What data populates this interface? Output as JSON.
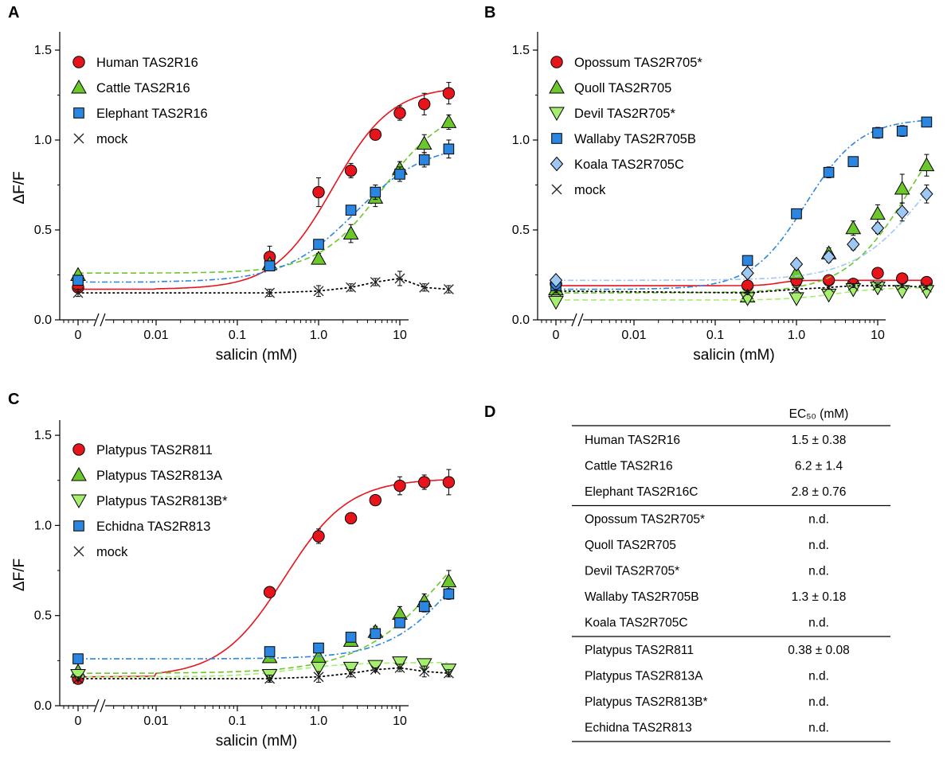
{
  "colors": {
    "red": "#e8141c",
    "green": "#6cc82a",
    "lightgreen": "#a6ee6e",
    "blue": "#2a86e0",
    "lightblue": "#9ec8f3",
    "mock": "#222222"
  },
  "chart_data": [
    {
      "panel": "A",
      "type": "scatter",
      "xlabel": "salicin (mM)",
      "ylabel": "ΔF/F",
      "xscale": "log (with zero point on broken axis)",
      "x_ticks": [
        "0",
        "0.01",
        "0.1",
        "1.0",
        "10"
      ],
      "y_ticks": [
        "0.0",
        "0.5",
        "1.0",
        "1.5"
      ],
      "ylim": [
        0,
        1.55
      ],
      "legend_position": "top-left",
      "x": [
        0,
        0.25,
        1,
        2.5,
        5,
        10,
        20,
        40
      ],
      "series": [
        {
          "name": "Human TAS2R16",
          "marker": "circle",
          "color": "red",
          "line": "solid",
          "values": [
            0.18,
            0.35,
            0.71,
            0.83,
            1.03,
            1.15,
            1.2,
            1.26
          ],
          "errors": [
            0.02,
            0.06,
            0.08,
            0.04,
            0.03,
            0.04,
            0.06,
            0.06
          ],
          "fit": {
            "bottom": 0.17,
            "top": 1.3,
            "ec50": 1.5,
            "hill": 1.2
          }
        },
        {
          "name": "Cattle TAS2R16",
          "marker": "triangle-up",
          "color": "green",
          "line": "dashed",
          "values": [
            0.25,
            0.31,
            0.34,
            0.48,
            0.68,
            0.84,
            0.98,
            1.1
          ],
          "errors": [
            0.01,
            0.02,
            0.03,
            0.05,
            0.05,
            0.04,
            0.05,
            0.04
          ],
          "fit": {
            "bottom": 0.26,
            "top": 1.2,
            "ec50": 6.2,
            "hill": 1.1
          }
        },
        {
          "name": "Elephant TAS2R16",
          "marker": "square",
          "color": "blue",
          "line": "dashdot",
          "values": [
            0.22,
            0.3,
            0.42,
            0.61,
            0.71,
            0.81,
            0.89,
            0.95
          ],
          "errors": [
            0.01,
            0.02,
            0.02,
            0.02,
            0.04,
            0.04,
            0.04,
            0.05
          ],
          "fit": {
            "bottom": 0.21,
            "top": 0.98,
            "ec50": 2.8,
            "hill": 1.0
          }
        },
        {
          "name": "mock",
          "marker": "x",
          "color": "mock",
          "line": "dotted",
          "values": [
            0.15,
            0.15,
            0.16,
            0.18,
            0.21,
            0.23,
            0.18,
            0.17
          ],
          "errors": [
            0.02,
            0.02,
            0.03,
            0.02,
            0.02,
            0.04,
            0.02,
            0.02
          ]
        }
      ]
    },
    {
      "panel": "B",
      "type": "scatter",
      "xlabel": "salicin (mM)",
      "ylabel": "ΔF/F",
      "xscale": "log (with zero point on broken axis)",
      "x_ticks": [
        "0",
        "0.01",
        "0.1",
        "1.0",
        "10"
      ],
      "y_ticks": [
        "0.0",
        "0.5",
        "1.0",
        "1.5"
      ],
      "ylim": [
        0,
        1.55
      ],
      "legend_position": "top-left",
      "x": [
        0,
        0.25,
        1,
        2.5,
        5,
        10,
        20,
        40
      ],
      "series": [
        {
          "name": "Opossum TAS2R705*",
          "marker": "circle",
          "color": "red",
          "line": "solid",
          "values": [
            0.2,
            0.19,
            0.22,
            0.22,
            0.2,
            0.26,
            0.23,
            0.21
          ],
          "errors": [
            0.01,
            0.01,
            0.01,
            0.01,
            0.01,
            0.01,
            0.01,
            0.01
          ],
          "fit": {
            "bottom": 0.19,
            "top": 0.22,
            "ec50": 0.6,
            "hill": 4.0
          }
        },
        {
          "name": "Quoll TAS2R705",
          "marker": "triangle-up",
          "color": "green",
          "line": "dashed",
          "values": [
            0.17,
            0.13,
            0.26,
            0.37,
            0.51,
            0.59,
            0.73,
            0.86
          ],
          "errors": [
            0.01,
            0.01,
            0.02,
            0.03,
            0.04,
            0.05,
            0.08,
            0.06
          ],
          "fit": {
            "bottom": 0.15,
            "top": 1.3,
            "ec50": 25,
            "hill": 1.1
          }
        },
        {
          "name": "Devil TAS2R705*",
          "marker": "triangle-down",
          "color": "lightgreen",
          "line": "dashed",
          "values": [
            0.1,
            0.12,
            0.12,
            0.14,
            0.17,
            0.18,
            0.16,
            0.16
          ],
          "errors": [
            0.01,
            0.01,
            0.01,
            0.01,
            0.02,
            0.01,
            0.02,
            0.01
          ],
          "fit": {
            "bottom": 0.11,
            "top": 0.18,
            "ec50": 3,
            "hill": 1.5
          }
        },
        {
          "name": "Wallaby TAS2R705B",
          "marker": "square",
          "color": "blue",
          "line": "dashdot",
          "values": [
            0.19,
            0.33,
            0.59,
            0.82,
            0.88,
            1.04,
            1.05,
            1.1
          ],
          "errors": [
            0.01,
            0.01,
            0.01,
            0.03,
            0.01,
            0.03,
            0.03,
            0.01
          ],
          "fit": {
            "bottom": 0.17,
            "top": 1.12,
            "ec50": 1.3,
            "hill": 1.3
          }
        },
        {
          "name": "Koala TAS2R705C",
          "marker": "diamond",
          "color": "lightblue",
          "line": "dashdot",
          "values": [
            0.22,
            0.26,
            0.31,
            0.35,
            0.42,
            0.51,
            0.6,
            0.7
          ],
          "errors": [
            0.01,
            0.01,
            0.02,
            0.03,
            0.03,
            0.03,
            0.05,
            0.05
          ],
          "fit": {
            "bottom": 0.22,
            "top": 1.2,
            "ec50": 40,
            "hill": 1.0
          }
        },
        {
          "name": "mock",
          "marker": "x",
          "color": "mock",
          "line": "dotted",
          "values": [
            0.16,
            0.15,
            0.17,
            0.18,
            0.19,
            0.19,
            0.19,
            0.18
          ],
          "errors": [
            0.01,
            0.01,
            0.01,
            0.01,
            0.01,
            0.01,
            0.01,
            0.01
          ]
        }
      ]
    },
    {
      "panel": "C",
      "type": "scatter",
      "xlabel": "salicin (mM)",
      "ylabel": "ΔF/F",
      "xscale": "log (with zero point on broken axis)",
      "x_ticks": [
        "0",
        "0.01",
        "0.1",
        "1.0",
        "10"
      ],
      "y_ticks": [
        "0.0",
        "0.5",
        "1.0",
        "1.5"
      ],
      "ylim": [
        0,
        1.55
      ],
      "legend_position": "top-left",
      "x": [
        0,
        0.25,
        1,
        2.5,
        5,
        10,
        20,
        40
      ],
      "series": [
        {
          "name": "Platypus TAS2R811",
          "marker": "circle",
          "color": "red",
          "line": "solid",
          "values": [
            0.15,
            0.63,
            0.94,
            1.04,
            1.14,
            1.22,
            1.24,
            1.24
          ],
          "errors": [
            0.02,
            0.03,
            0.04,
            0.03,
            0.01,
            0.05,
            0.04,
            0.07
          ],
          "fit": {
            "bottom": 0.16,
            "top": 1.26,
            "ec50": 0.38,
            "hill": 1.1
          }
        },
        {
          "name": "Platypus TAS2R813A",
          "marker": "triangle-up",
          "color": "green",
          "line": "dashed",
          "values": [
            0.19,
            0.27,
            0.27,
            0.36,
            0.41,
            0.51,
            0.58,
            0.69
          ],
          "errors": [
            0.02,
            0.03,
            0.04,
            0.03,
            0.03,
            0.04,
            0.04,
            0.06
          ],
          "fit": {
            "bottom": 0.18,
            "top": 1.3,
            "ec50": 40,
            "hill": 0.8
          }
        },
        {
          "name": "Platypus TAS2R813B*",
          "marker": "triangle-down",
          "color": "lightgreen",
          "line": "dashed",
          "values": [
            0.17,
            0.17,
            0.21,
            0.21,
            0.22,
            0.24,
            0.23,
            0.2
          ],
          "errors": [
            0.02,
            0.02,
            0.02,
            0.02,
            0.02,
            0.03,
            0.03,
            0.02
          ],
          "fit": {
            "bottom": 0.16,
            "top": 0.24,
            "ec50": 0.5,
            "hill": 1.2
          }
        },
        {
          "name": "Echidna TAS2R813",
          "marker": "square",
          "color": "blue",
          "line": "dashdot",
          "values": [
            0.26,
            0.3,
            0.32,
            0.38,
            0.4,
            0.46,
            0.55,
            0.62
          ],
          "errors": [
            0.01,
            0.02,
            0.02,
            0.02,
            0.02,
            0.02,
            0.03,
            0.03
          ],
          "fit": {
            "bottom": 0.26,
            "top": 1.2,
            "ec50": 60,
            "hill": 1.0
          }
        },
        {
          "name": "mock",
          "marker": "x",
          "color": "mock",
          "line": "dotted",
          "values": [
            0.15,
            0.15,
            0.16,
            0.18,
            0.2,
            0.21,
            0.19,
            0.18
          ],
          "errors": [
            0.01,
            0.02,
            0.03,
            0.02,
            0.01,
            0.02,
            0.03,
            0.02
          ]
        }
      ]
    },
    {
      "panel": "D",
      "type": "table",
      "header": "EC₅₀ (mM)",
      "groups": [
        [
          {
            "receptor": "Human TAS2R16",
            "ec50": "1.5 ± 0.38"
          },
          {
            "receptor": "Cattle TAS2R16",
            "ec50": "6.2 ± 1.4"
          },
          {
            "receptor": "Elephant TAS2R16C",
            "ec50": "2.8 ± 0.76"
          }
        ],
        [
          {
            "receptor": "Opossum TAS2R705*",
            "ec50": "n.d."
          },
          {
            "receptor": "Quoll TAS2R705",
            "ec50": "n.d."
          },
          {
            "receptor": "Devil TAS2R705*",
            "ec50": "n.d."
          },
          {
            "receptor": "Wallaby TAS2R705B",
            "ec50": "1.3 ± 0.18"
          },
          {
            "receptor": "Koala TAS2R705C",
            "ec50": "n.d."
          }
        ],
        [
          {
            "receptor": "Platypus TAS2R811",
            "ec50": "0.38 ± 0.08"
          },
          {
            "receptor": "Platypus TAS2R813A",
            "ec50": "n.d."
          },
          {
            "receptor": "Platypus TAS2R813B*",
            "ec50": "n.d."
          },
          {
            "receptor": "Echidna TAS2R813",
            "ec50": "n.d."
          }
        ]
      ]
    }
  ]
}
